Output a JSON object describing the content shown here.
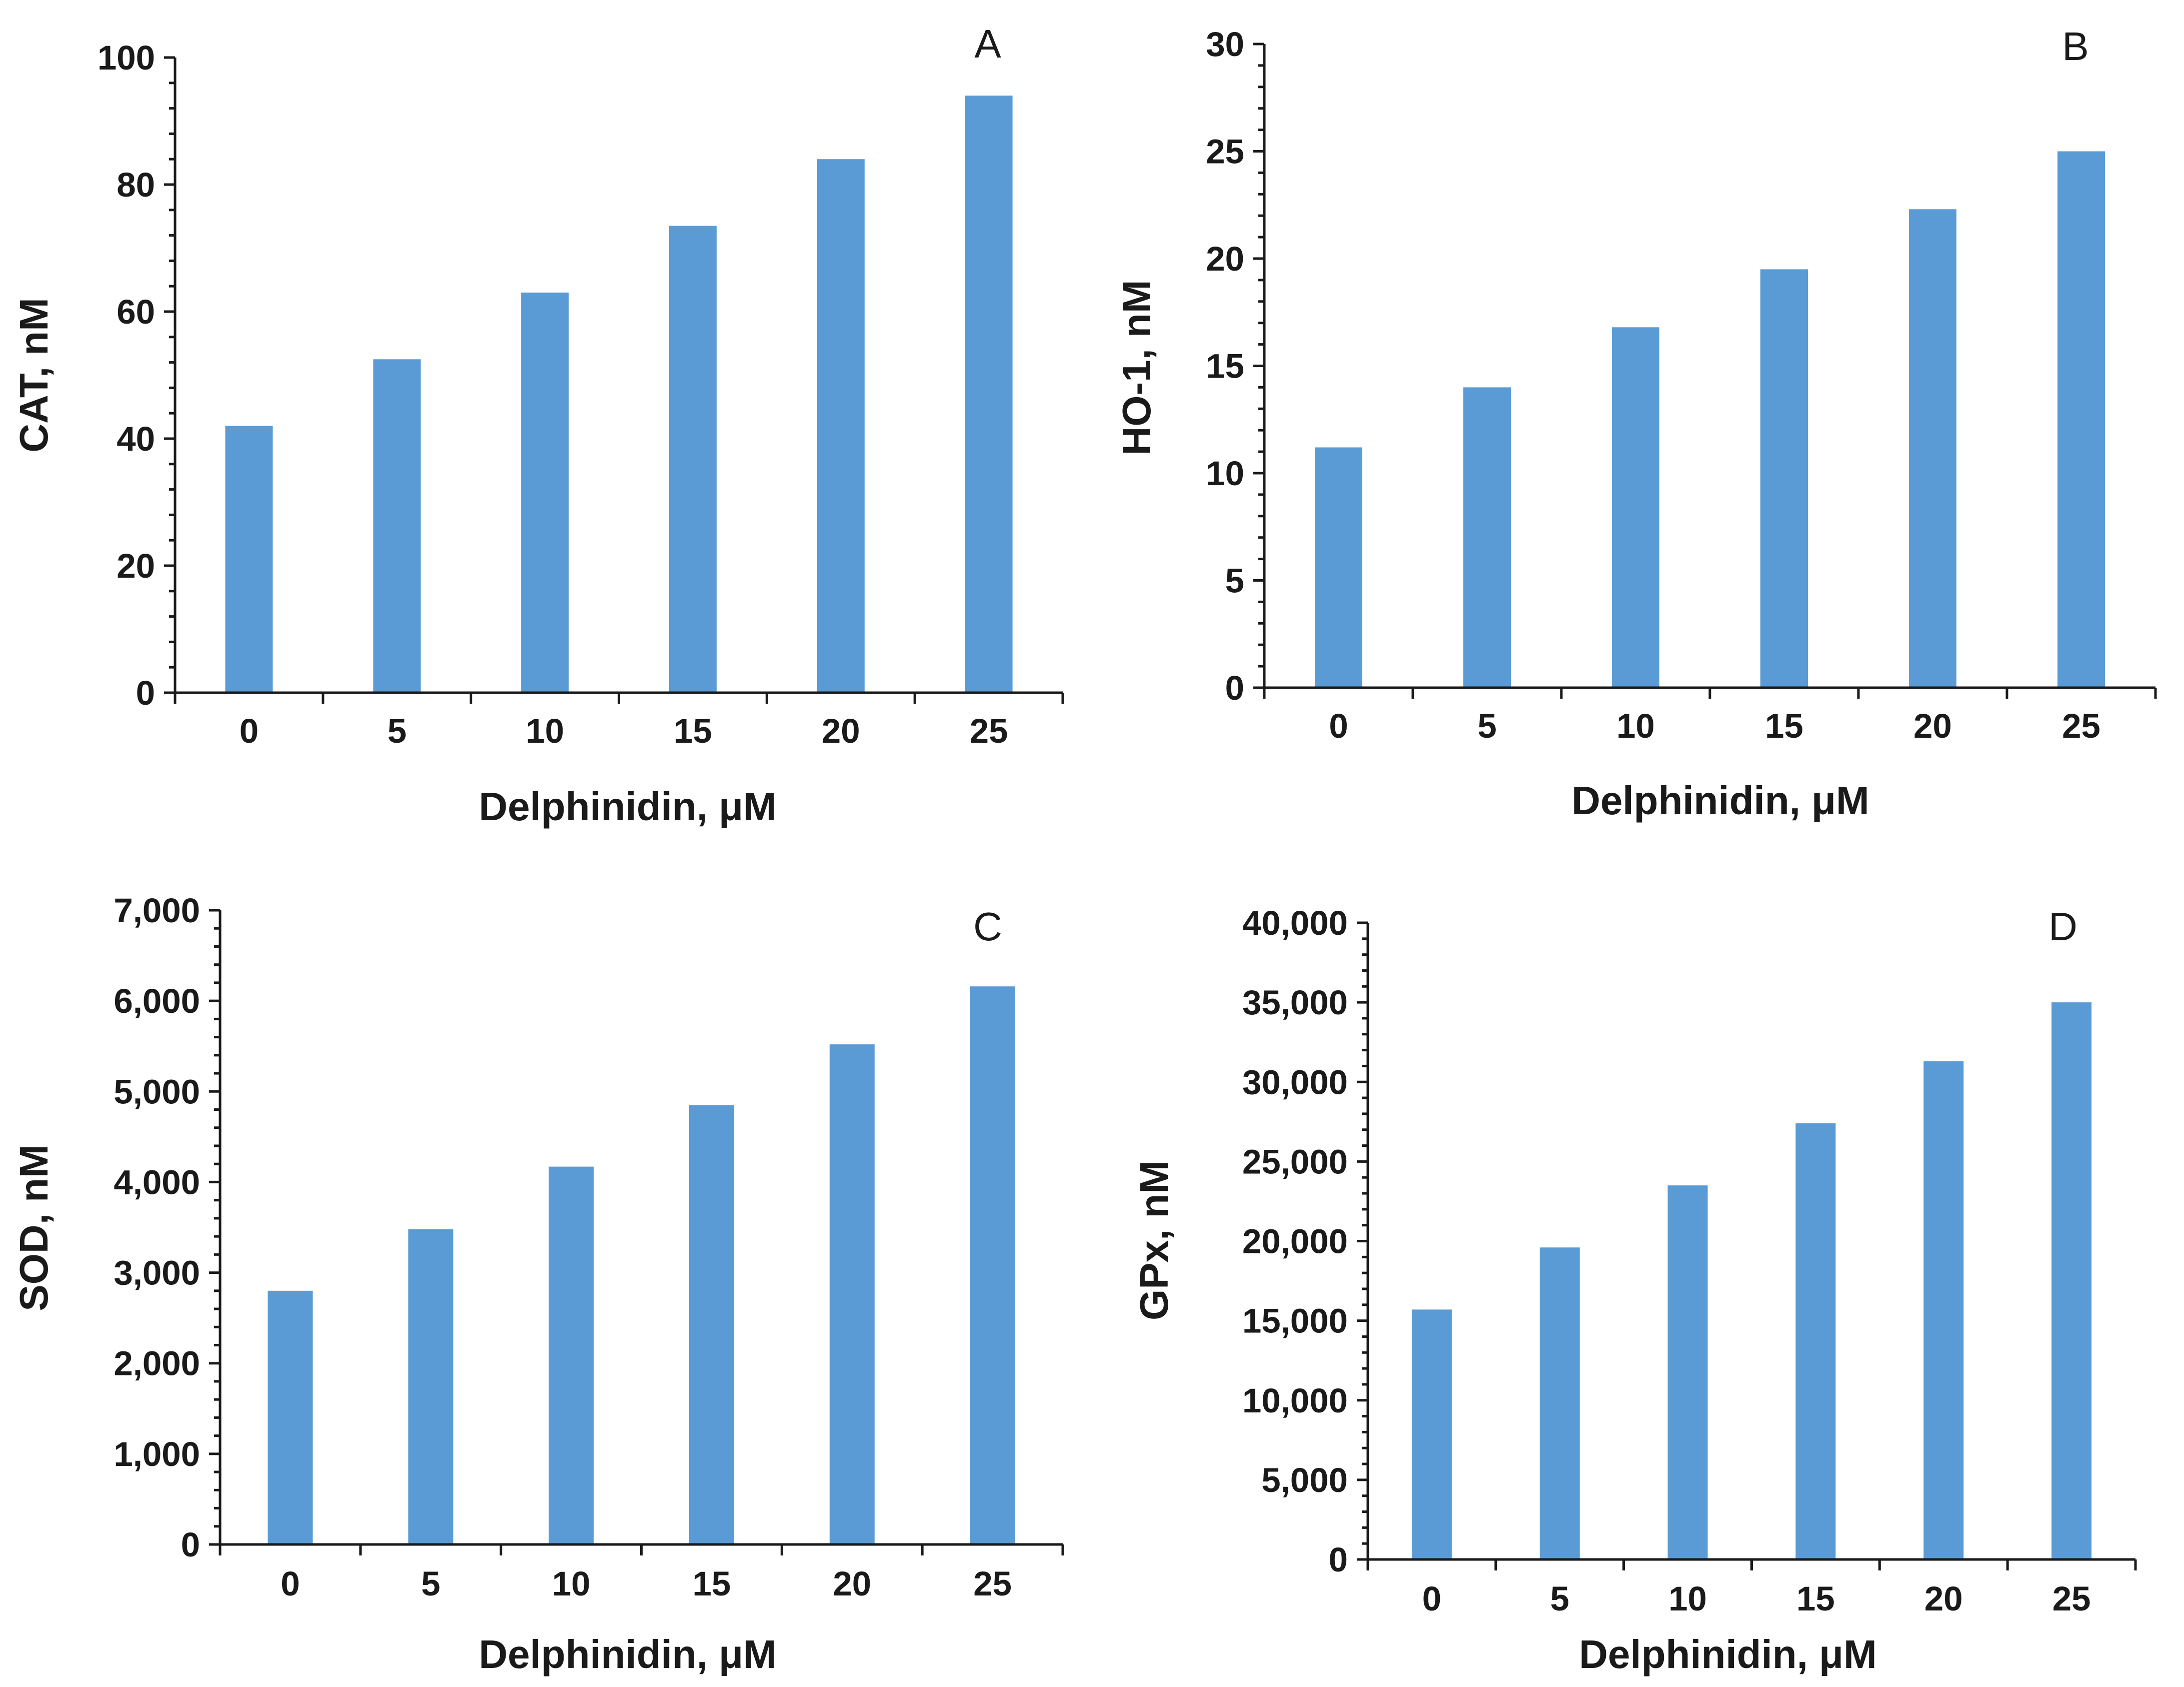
{
  "bar_color": "#5b9bd5",
  "axis_color": "#1a1a1a",
  "chart_data": [
    {
      "type": "bar",
      "panel": "A",
      "categories": [
        "0",
        "5",
        "10",
        "15",
        "20",
        "25"
      ],
      "values": [
        42,
        52.5,
        63,
        73.5,
        84,
        94
      ],
      "xlabel": "Delphinidin, μM",
      "ylabel": "CAT, nM",
      "ylim": [
        0,
        100
      ],
      "yticks": [
        0,
        20,
        40,
        60,
        80,
        100
      ],
      "ytick_labels": [
        "0",
        "20",
        "40",
        "60",
        "80",
        "100"
      ],
      "minor_per_major": 4,
      "grid": false
    },
    {
      "type": "bar",
      "panel": "B",
      "categories": [
        "0",
        "5",
        "10",
        "15",
        "20",
        "25"
      ],
      "values": [
        11.2,
        14,
        16.8,
        19.5,
        22.3,
        25
      ],
      "xlabel": "Delphinidin, μM",
      "ylabel": "HO-1, nM",
      "ylim": [
        0,
        30
      ],
      "yticks": [
        0,
        5,
        10,
        15,
        20,
        25,
        30
      ],
      "ytick_labels": [
        "0",
        "5",
        "10",
        "15",
        "20",
        "25",
        "30"
      ],
      "minor_per_major": 4,
      "grid": false
    },
    {
      "type": "bar",
      "panel": "C",
      "categories": [
        "0",
        "5",
        "10",
        "15",
        "20",
        "25"
      ],
      "values": [
        2800,
        3480,
        4170,
        4850,
        5520,
        6160
      ],
      "xlabel": "Delphinidin, μM",
      "ylabel": "SOD, nM",
      "ylim": [
        0,
        7000
      ],
      "yticks": [
        0,
        1000,
        2000,
        3000,
        4000,
        5000,
        6000,
        7000
      ],
      "ytick_labels": [
        "0",
        "1,000",
        "2,000",
        "3,000",
        "4,000",
        "5,000",
        "6,000",
        "7,000"
      ],
      "minor_per_major": 4,
      "grid": false
    },
    {
      "type": "bar",
      "panel": "D",
      "categories": [
        "0",
        "5",
        "10",
        "15",
        "20",
        "25"
      ],
      "values": [
        15700,
        19600,
        23500,
        27400,
        31300,
        35000
      ],
      "xlabel": "Delphinidin, μM",
      "ylabel": "GPx, nM",
      "ylim": [
        0,
        40000
      ],
      "yticks": [
        0,
        5000,
        10000,
        15000,
        20000,
        25000,
        30000,
        35000,
        40000
      ],
      "ytick_labels": [
        "0",
        "5,000",
        "10,000",
        "15,000",
        "20,000",
        "25,000",
        "30,000",
        "35,000",
        "40,000"
      ],
      "minor_per_major": 4,
      "grid": false
    }
  ]
}
